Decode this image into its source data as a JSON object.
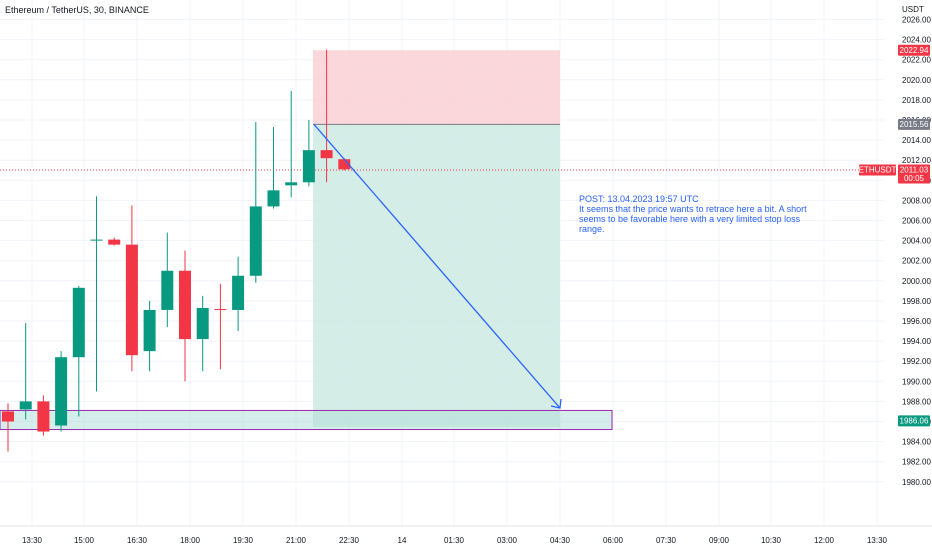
{
  "header": {
    "title": "Ethereum / TetherUS, 30, BINANCE"
  },
  "price_axis": {
    "currency_label": "USDT",
    "ticks": [
      "2026.00",
      "2024.00",
      "2022.00",
      "2020.00",
      "2018.00",
      "2016.00",
      "2014.00",
      "2012.00",
      "2010.00",
      "2008.00",
      "2006.00",
      "2004.00",
      "2002.00",
      "2000.00",
      "1998.00",
      "1996.00",
      "1994.00",
      "1992.00",
      "1990.00",
      "1988.00",
      "1986.00",
      "1984.00",
      "1982.00",
      "1980.00"
    ],
    "badges": {
      "stop_loss": "2022.94",
      "entry": "2015.56",
      "symbol": "ETHUSDT",
      "current": "2011.03",
      "countdown": "00:05",
      "target": "1986.06"
    }
  },
  "time_axis": {
    "ticks": [
      "13:30",
      "15:00",
      "16:30",
      "18:00",
      "19:30",
      "21:00",
      "22:30",
      "14",
      "01:30",
      "03:00",
      "04:30",
      "06:00",
      "07:30",
      "09:00",
      "10:30",
      "12:00",
      "13:30"
    ]
  },
  "annotation": {
    "line1": "POST: 13.04.2023 19:57 UTC",
    "line2": "It seems that the price wants to retrace here a bit. A short seems to be favorable here with a very limited stop loss range."
  },
  "colors": {
    "bull": "#089981",
    "bear": "#f23645",
    "stop_zone": "#f9d3d6",
    "target_zone": "#cfebe4",
    "arrow": "#2962ff",
    "support_zone_border": "#9c27b0",
    "last_price_line": "#f23645"
  },
  "chart_data": {
    "type": "candlestick",
    "symbol": "ETHUSDT",
    "interval": "30",
    "y_range": [
      1979,
      2027
    ],
    "candles": [
      {
        "o": 1987.0,
        "h": 1987.8,
        "l": 1983.0,
        "c": 1986.0
      },
      {
        "o": 1987.2,
        "h": 1995.8,
        "l": 1986.2,
        "c": 1988.0
      },
      {
        "o": 1988.0,
        "h": 1988.6,
        "l": 1984.6,
        "c": 1985.0
      },
      {
        "o": 1985.6,
        "h": 1993.0,
        "l": 1985.0,
        "c": 1992.4
      },
      {
        "o": 1992.4,
        "h": 1999.5,
        "l": 1986.5,
        "c": 1999.3
      },
      {
        "o": 2004.0,
        "h": 2008.4,
        "l": 1989.0,
        "c": 2004.1
      },
      {
        "o": 2004.1,
        "h": 2004.3,
        "l": 2003.5,
        "c": 2003.6
      },
      {
        "o": 2003.6,
        "h": 2007.5,
        "l": 1991.0,
        "c": 1992.6
      },
      {
        "o": 1993.0,
        "h": 1998.0,
        "l": 1991.0,
        "c": 1997.1
      },
      {
        "o": 1997.1,
        "h": 2004.8,
        "l": 1995.4,
        "c": 2001.0
      },
      {
        "o": 2001.0,
        "h": 2003.0,
        "l": 1990.0,
        "c": 1994.2
      },
      {
        "o": 1994.2,
        "h": 1998.5,
        "l": 1991.0,
        "c": 1997.3
      },
      {
        "o": 1997.2,
        "h": 1999.7,
        "l": 1991.2,
        "c": 1997.1
      },
      {
        "o": 1997.1,
        "h": 2002.4,
        "l": 1995.0,
        "c": 2000.5
      },
      {
        "o": 2000.5,
        "h": 2015.8,
        "l": 1999.8,
        "c": 2007.4
      },
      {
        "o": 2007.4,
        "h": 2015.3,
        "l": 2007.2,
        "c": 2009.0
      },
      {
        "o": 2009.5,
        "h": 2018.9,
        "l": 2008.3,
        "c": 2009.8
      },
      {
        "o": 2009.8,
        "h": 2016.0,
        "l": 2009.4,
        "c": 2013.0
      },
      {
        "o": 2013.0,
        "h": 2023.0,
        "l": 2009.8,
        "c": 2012.2
      },
      {
        "o": 2012.1,
        "h": 2012.2,
        "l": 2011.0,
        "c": 2011.1
      }
    ],
    "position": {
      "side": "short",
      "entry": 2015.56,
      "stop_loss": 2022.94,
      "target": 1986.06
    },
    "support_zone": {
      "top": 1987.1,
      "bottom": 1985.2
    },
    "last_price": 2011.03
  }
}
